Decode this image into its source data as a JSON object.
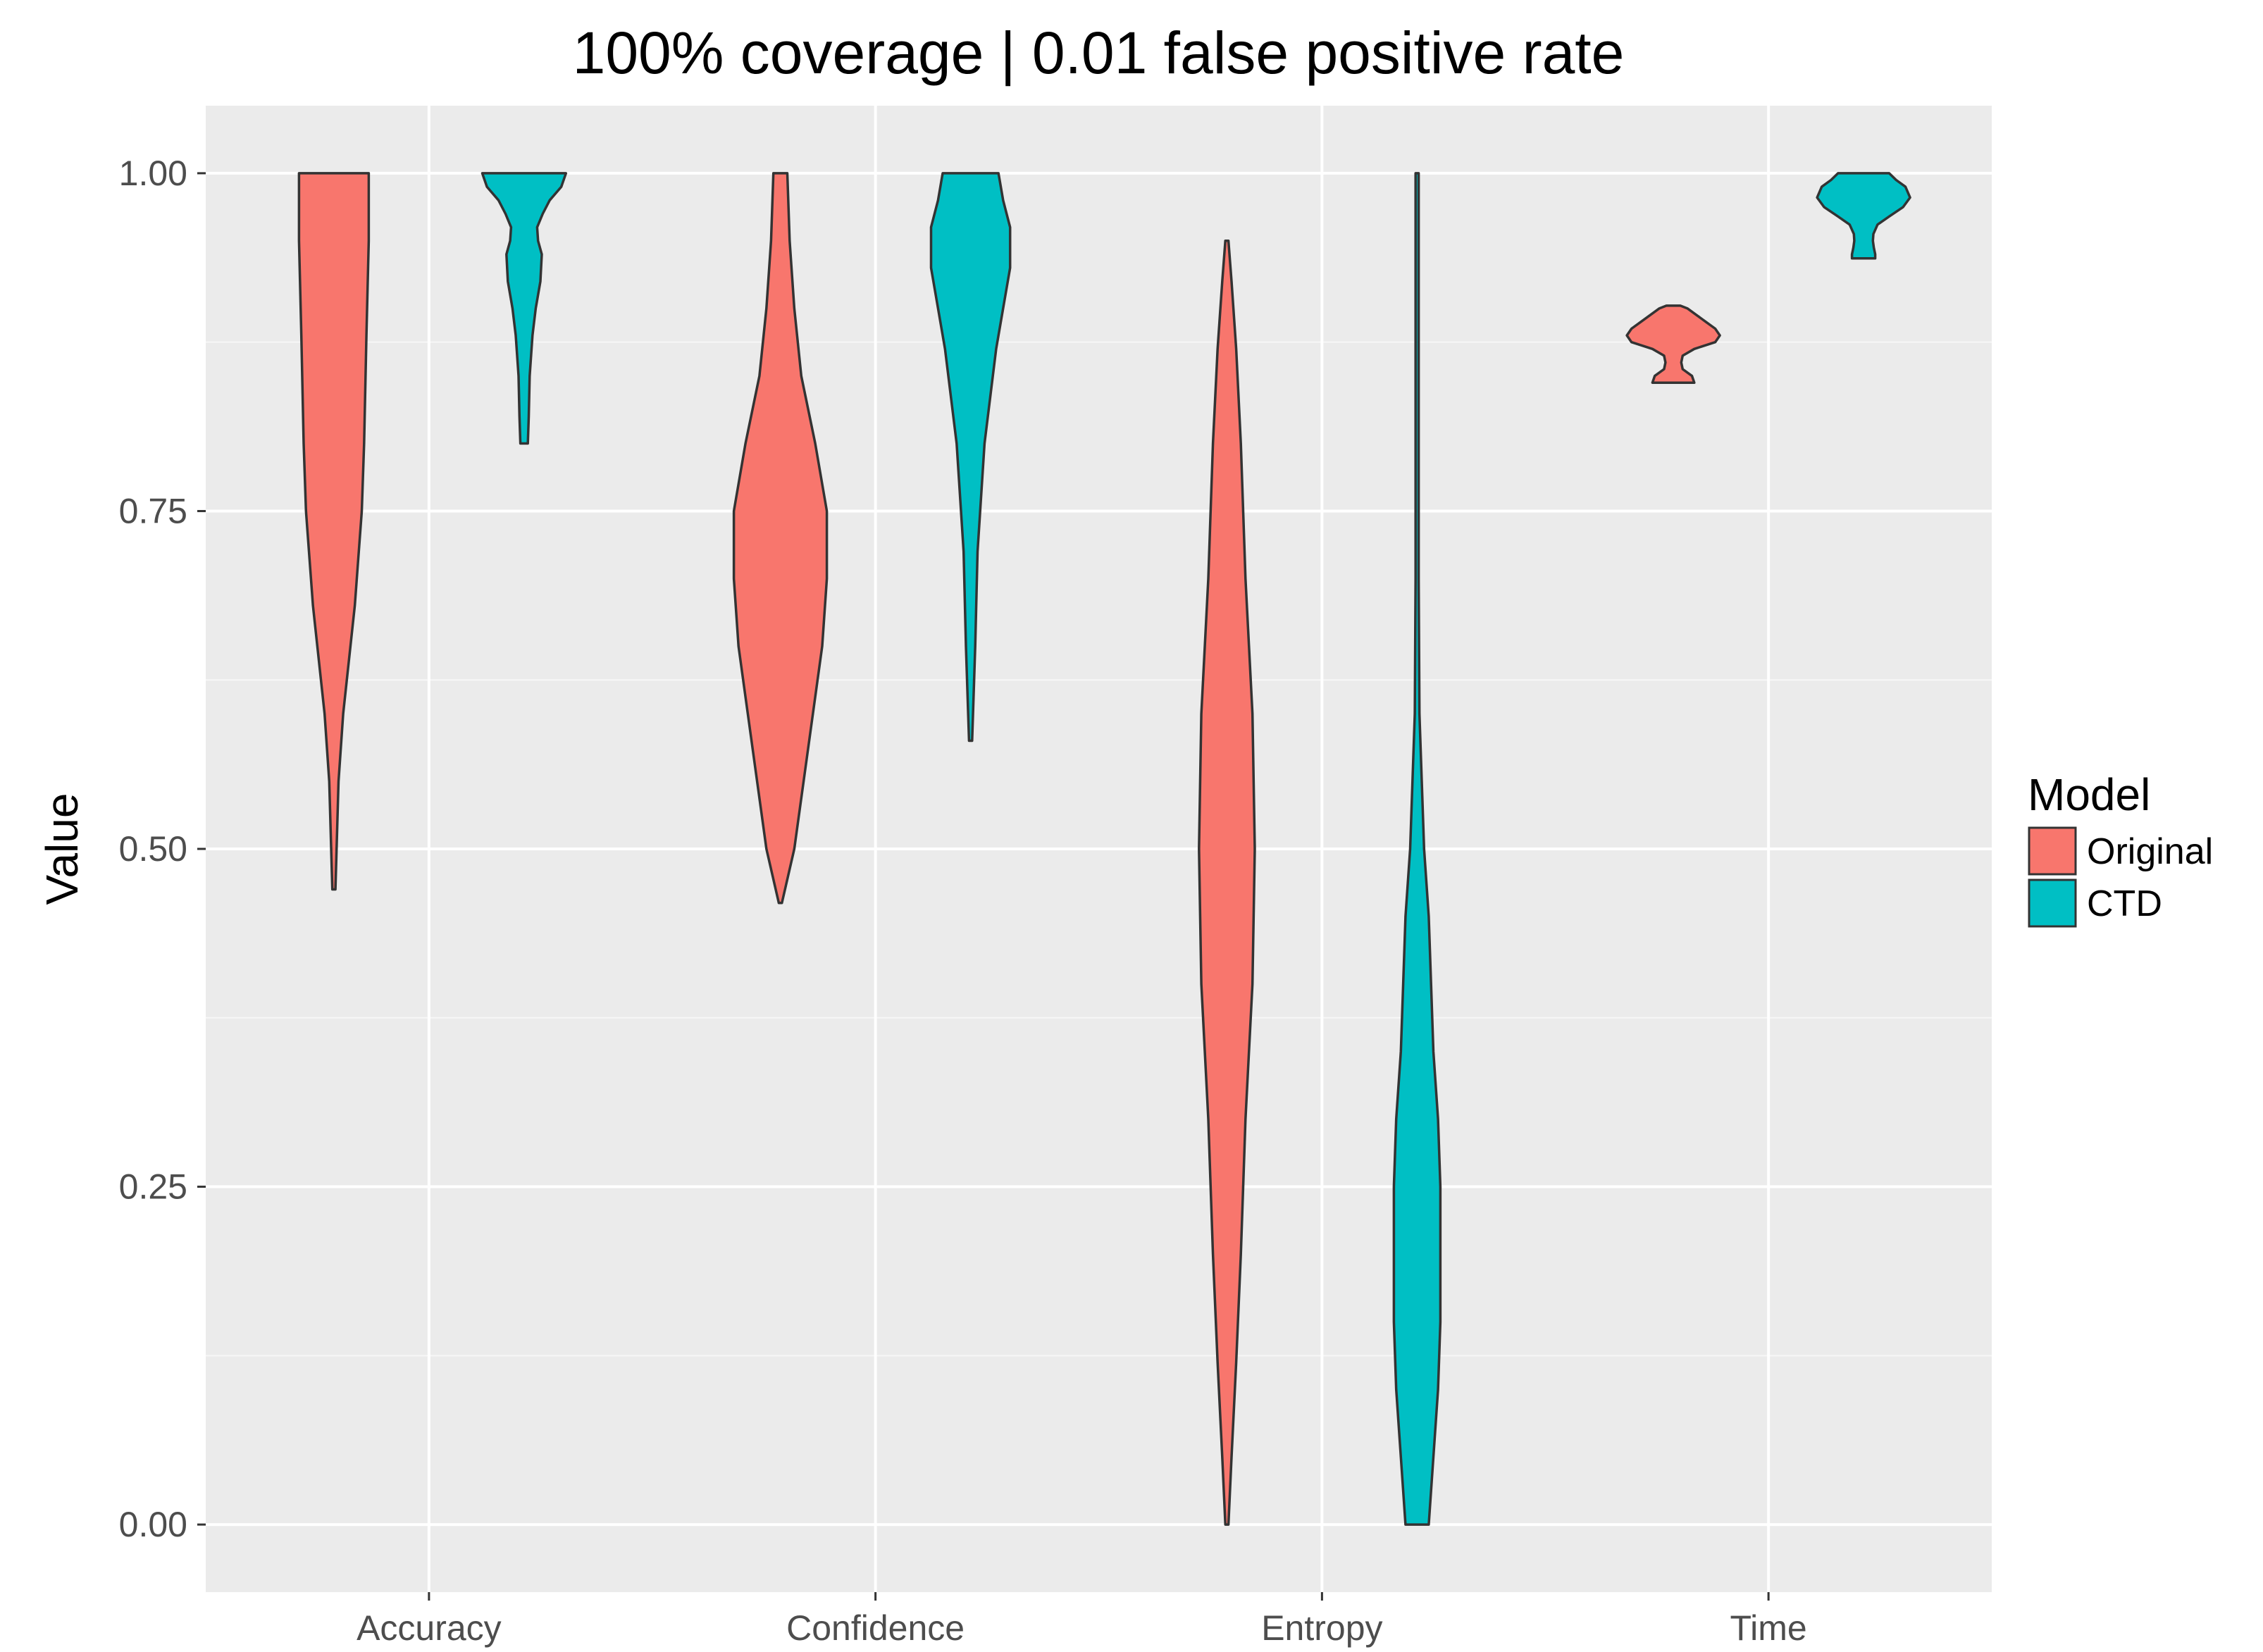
{
  "chart_data": {
    "type": "violin",
    "title": "100% coverage | 0.01 false positive rate",
    "xlabel": "",
    "ylabel": "Value",
    "ylim": [
      -0.05,
      1.05
    ],
    "yticks": [
      "0.00",
      "0.25",
      "0.50",
      "0.75",
      "1.00"
    ],
    "yticks_values": [
      0,
      0.25,
      0.5,
      0.75,
      1.0
    ],
    "categories": [
      "Accuracy",
      "Confidence",
      "Entropy",
      "Time"
    ],
    "grid": true,
    "legend": {
      "title": "Model",
      "position": "right",
      "entries": [
        {
          "name": "Original",
          "color": "#F8766D"
        },
        {
          "name": "CTD",
          "color": "#00BFC4"
        }
      ]
    },
    "series": [
      {
        "name": "Original",
        "color": "#F8766D",
        "violins": [
          {
            "category": "Accuracy",
            "profile": [
              [
                0.47,
                0.0
              ],
              [
                0.55,
                0.1
              ],
              [
                0.6,
                0.2
              ],
              [
                0.68,
                0.45
              ],
              [
                0.75,
                0.6
              ],
              [
                0.8,
                0.65
              ],
              [
                0.88,
                0.7
              ],
              [
                0.95,
                0.75
              ],
              [
                1.0,
                0.75
              ]
            ]
          },
          {
            "category": "Confidence",
            "profile": [
              [
                0.46,
                0.0
              ],
              [
                0.5,
                0.3
              ],
              [
                0.55,
                0.5
              ],
              [
                0.6,
                0.7
              ],
              [
                0.65,
                0.9
              ],
              [
                0.7,
                1.0
              ],
              [
                0.75,
                1.0
              ],
              [
                0.8,
                0.75
              ],
              [
                0.85,
                0.45
              ],
              [
                0.9,
                0.3
              ],
              [
                0.95,
                0.2
              ],
              [
                1.0,
                0.15
              ]
            ]
          },
          {
            "category": "Entropy",
            "profile": [
              [
                0.0,
                0.0
              ],
              [
                0.05,
                0.1
              ],
              [
                0.12,
                0.2
              ],
              [
                0.2,
                0.3
              ],
              [
                0.3,
                0.4
              ],
              [
                0.4,
                0.55
              ],
              [
                0.5,
                0.6
              ],
              [
                0.6,
                0.55
              ],
              [
                0.7,
                0.4
              ],
              [
                0.8,
                0.3
              ],
              [
                0.87,
                0.2
              ],
              [
                0.92,
                0.1
              ],
              [
                0.95,
                0.0
              ]
            ]
          },
          {
            "category": "Time",
            "profile": [
              [
                0.845,
                0.45
              ],
              [
                0.85,
                0.4
              ],
              [
                0.855,
                0.2
              ],
              [
                0.86,
                0.17
              ],
              [
                0.865,
                0.2
              ],
              [
                0.87,
                0.45
              ],
              [
                0.875,
                0.9
              ],
              [
                0.88,
                1.0
              ],
              [
                0.885,
                0.9
              ],
              [
                0.89,
                0.7
              ],
              [
                0.895,
                0.5
              ],
              [
                0.9,
                0.3
              ],
              [
                0.902,
                0.15
              ]
            ]
          }
        ]
      },
      {
        "name": "CTD",
        "color": "#00BFC4",
        "violins": [
          {
            "category": "Accuracy",
            "profile": [
              [
                0.8,
                0.08
              ],
              [
                0.82,
                0.1
              ],
              [
                0.85,
                0.12
              ],
              [
                0.88,
                0.18
              ],
              [
                0.9,
                0.25
              ],
              [
                0.92,
                0.35
              ],
              [
                0.94,
                0.38
              ],
              [
                0.95,
                0.3
              ],
              [
                0.96,
                0.28
              ],
              [
                0.97,
                0.4
              ],
              [
                0.98,
                0.55
              ],
              [
                0.99,
                0.8
              ],
              [
                1.0,
                0.9
              ]
            ]
          },
          {
            "category": "Confidence",
            "profile": [
              [
                0.58,
                0.0
              ],
              [
                0.65,
                0.1
              ],
              [
                0.72,
                0.15
              ],
              [
                0.8,
                0.3
              ],
              [
                0.87,
                0.55
              ],
              [
                0.9,
                0.7
              ],
              [
                0.93,
                0.85
              ],
              [
                0.96,
                0.85
              ],
              [
                0.98,
                0.7
              ],
              [
                1.0,
                0.6
              ]
            ]
          },
          {
            "category": "Entropy",
            "profile": [
              [
                0.0,
                0.25
              ],
              [
                0.05,
                0.35
              ],
              [
                0.1,
                0.45
              ],
              [
                0.15,
                0.5
              ],
              [
                0.2,
                0.5
              ],
              [
                0.25,
                0.5
              ],
              [
                0.3,
                0.45
              ],
              [
                0.35,
                0.35
              ],
              [
                0.4,
                0.3
              ],
              [
                0.45,
                0.25
              ],
              [
                0.5,
                0.15
              ],
              [
                0.55,
                0.1
              ],
              [
                0.6,
                0.05
              ],
              [
                0.7,
                0.02
              ],
              [
                0.85,
                0.01
              ],
              [
                1.0,
                0.0
              ]
            ]
          },
          {
            "category": "Time",
            "profile": [
              [
                0.937,
                0.25
              ],
              [
                0.94,
                0.25
              ],
              [
                0.945,
                0.22
              ],
              [
                0.95,
                0.2
              ],
              [
                0.955,
                0.21
              ],
              [
                0.962,
                0.3
              ],
              [
                0.968,
                0.55
              ],
              [
                0.975,
                0.85
              ],
              [
                0.982,
                1.0
              ],
              [
                0.99,
                0.9
              ],
              [
                0.995,
                0.7
              ],
              [
                1.0,
                0.55
              ]
            ]
          }
        ]
      }
    ]
  }
}
